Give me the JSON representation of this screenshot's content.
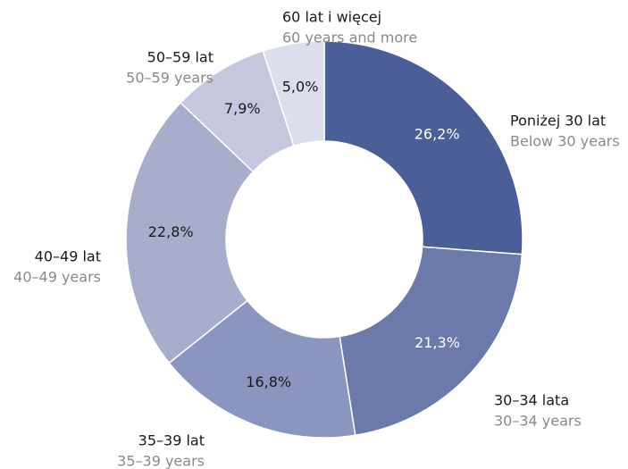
{
  "chart_data": {
    "type": "donut",
    "categories": [
      "Poniżej 30 lat",
      "30–34 lata",
      "35–39 lat",
      "40–49 lat",
      "50–59 lat",
      "60 lat i więcej"
    ],
    "categories_en": [
      "Below 30 years",
      "30–34 years",
      "35–39 years",
      "40–49 years",
      "50–59 years",
      "60 years and more"
    ],
    "values": [
      26.2,
      21.3,
      16.8,
      22.8,
      7.9,
      5.0
    ],
    "value_labels": [
      "26,2%",
      "21,3%",
      "16,8%",
      "22,8%",
      "7,9%",
      "5,0%"
    ],
    "colors": [
      "#4a5e98",
      "#6b7aab",
      "#8a96c0",
      "#a9adcc",
      "#c4c7de",
      "#dcdeeb"
    ]
  }
}
